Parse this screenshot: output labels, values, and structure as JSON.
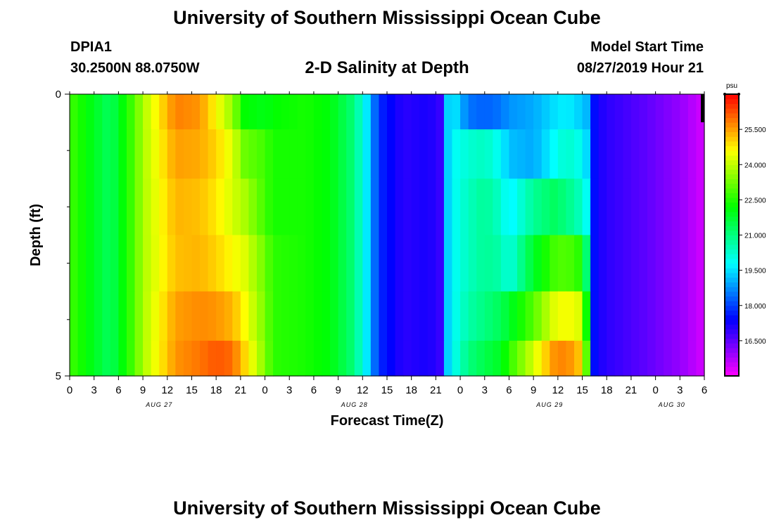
{
  "header": {
    "title": "University of Southern Mississippi Ocean Cube",
    "station_id": "DPIA1",
    "station_coords": "30.2500N 88.0750W",
    "chart_title": "2-D Salinity at Depth",
    "model_start_label": "Model Start Time",
    "model_start_value": "08/27/2019 Hour 21"
  },
  "footer": {
    "title": "University of Southern Mississippi Ocean Cube"
  },
  "chart_data": {
    "type": "heatmap",
    "title": "2-D Salinity at Depth",
    "xlabel": "Forecast Time(Z)",
    "ylabel": "Depth (ft)",
    "x_unit": "hours since 08/27 00Z",
    "x_range": [
      0,
      78
    ],
    "x_ticks": [
      0,
      3,
      6,
      9,
      12,
      15,
      18,
      21,
      24,
      27,
      30,
      33,
      36,
      39,
      42,
      45,
      48,
      51,
      54,
      57,
      60,
      63,
      66,
      69,
      72,
      75,
      78
    ],
    "x_tick_labels": [
      "0",
      "3",
      "6",
      "9",
      "12",
      "15",
      "18",
      "21",
      "0",
      "3",
      "6",
      "9",
      "12",
      "15",
      "18",
      "21",
      "0",
      "3",
      "6",
      "9",
      "12",
      "15",
      "18",
      "21",
      "0",
      "3",
      "6"
    ],
    "date_labels": [
      {
        "label": "AUG 27",
        "hour": 11
      },
      {
        "label": "AUG 28",
        "hour": 35
      },
      {
        "label": "AUG 29",
        "hour": 59
      },
      {
        "label": "AUG 30",
        "hour": 74
      }
    ],
    "y_range": [
      0,
      5
    ],
    "y_tick_labels": [
      {
        "value": 0,
        "label": "0"
      },
      {
        "value": 5,
        "label": "5"
      }
    ],
    "y_minor_ticks": [
      1,
      2,
      3,
      4
    ],
    "depths": [
      0,
      1,
      2,
      3,
      4,
      5
    ],
    "colorbar": {
      "unit": "psu",
      "min": 15.0,
      "max": 27.0,
      "ticks": [
        16.5,
        18.0,
        19.5,
        21.0,
        22.5,
        24.0,
        25.5
      ],
      "tick_labels": [
        "16.500",
        "18.000",
        "19.500",
        "21.000",
        "22.500",
        "24.000",
        "25.500"
      ]
    },
    "salinity": {
      "layer_centers_ft": [
        0.25,
        1.0,
        2.0,
        3.0,
        4.0,
        4.75
      ],
      "time_knots_hours": [
        0,
        2,
        5,
        8,
        9,
        13,
        16,
        18,
        20,
        21.5,
        24,
        25,
        29,
        32,
        34.5,
        36,
        38,
        41,
        44,
        45.5,
        46,
        47,
        49,
        51,
        53,
        54,
        57,
        59.5,
        61,
        62.5,
        64,
        64.5,
        65,
        66,
        71,
        75,
        78
      ],
      "profiles": [
        [
          22.8,
          22.2,
          21.3,
          23.0,
          23.8,
          25.8,
          25.6,
          24.6,
          23.6,
          22.2,
          22.0,
          22.2,
          22.4,
          22.1,
          21.2,
          20.2,
          17.8,
          17.0,
          17.2,
          16.9,
          19.0,
          19.8,
          18.5,
          18.3,
          18.5,
          18.8,
          19.0,
          19.5,
          19.7,
          19.4,
          19.0,
          17.5,
          17.2,
          17.0,
          16.5,
          16.0,
          15.4
        ],
        [
          22.8,
          22.2,
          21.3,
          23.0,
          23.8,
          25.5,
          25.4,
          25.0,
          24.3,
          23.2,
          22.8,
          22.4,
          22.4,
          22.1,
          21.2,
          20.2,
          17.8,
          17.0,
          17.2,
          16.9,
          19.0,
          19.8,
          20.2,
          20.4,
          19.8,
          19.2,
          19.0,
          19.8,
          20.3,
          20.0,
          19.2,
          17.5,
          17.2,
          17.0,
          16.5,
          16.0,
          15.4
        ],
        [
          22.8,
          22.2,
          21.3,
          23.0,
          23.8,
          25.3,
          25.2,
          24.8,
          24.2,
          23.8,
          22.8,
          22.4,
          22.4,
          22.1,
          21.2,
          20.2,
          17.8,
          17.0,
          17.2,
          16.9,
          19.0,
          19.8,
          20.4,
          20.8,
          20.3,
          19.6,
          20.8,
          21.3,
          21.0,
          20.5,
          19.6,
          17.5,
          17.2,
          17.0,
          16.5,
          16.0,
          15.4
        ],
        [
          22.8,
          22.2,
          21.3,
          23.0,
          23.8,
          25.2,
          25.3,
          25.0,
          24.6,
          24.3,
          23.2,
          22.6,
          22.4,
          22.1,
          21.2,
          20.2,
          17.8,
          17.0,
          17.2,
          16.9,
          19.0,
          19.8,
          20.4,
          20.8,
          20.6,
          20.0,
          21.8,
          22.8,
          23.0,
          22.6,
          20.4,
          17.5,
          17.2,
          17.0,
          16.5,
          16.0,
          15.4
        ],
        [
          22.8,
          22.2,
          21.3,
          23.0,
          23.8,
          25.5,
          25.7,
          25.6,
          25.3,
          24.6,
          23.3,
          22.6,
          22.4,
          22.1,
          21.2,
          20.2,
          17.8,
          17.0,
          17.2,
          16.9,
          19.0,
          19.8,
          20.6,
          21.0,
          21.4,
          21.8,
          23.0,
          24.3,
          24.6,
          24.3,
          21.3,
          17.5,
          17.2,
          17.0,
          16.5,
          16.0,
          15.4
        ],
        [
          22.8,
          22.2,
          21.3,
          23.0,
          23.8,
          25.6,
          25.9,
          26.2,
          26.0,
          25.0,
          23.4,
          22.6,
          22.4,
          22.1,
          21.2,
          20.2,
          17.8,
          17.0,
          17.2,
          16.9,
          19.0,
          19.8,
          21.0,
          21.5,
          21.9,
          22.6,
          24.2,
          25.6,
          25.8,
          25.2,
          22.0,
          17.5,
          17.2,
          17.0,
          16.5,
          16.0,
          15.4
        ]
      ]
    }
  }
}
